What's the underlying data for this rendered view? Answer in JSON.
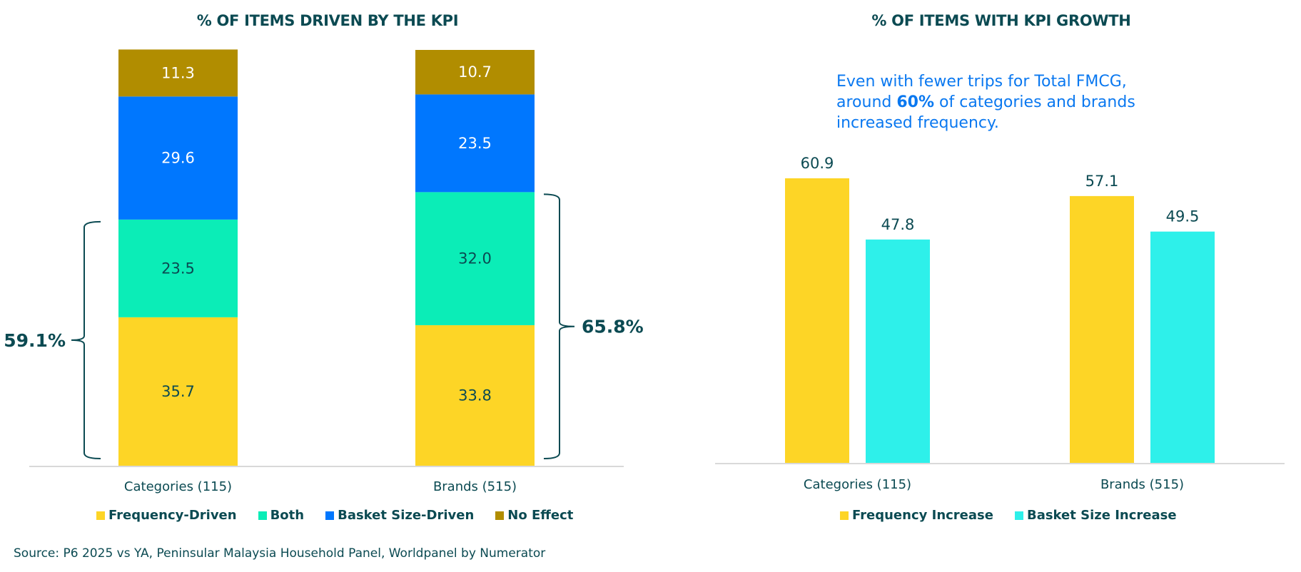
{
  "source": "Source: P6 2025 vs YA, Peninsular Malaysia Household Panel, Worldpanel by Numerator",
  "colors": {
    "frequency": "#fdd526",
    "both": "#0bedb7",
    "basket": "#0077fe",
    "no_effect": "#b18d00",
    "basket_increase": "#2ef0ea",
    "text_dark": "#0b4a52",
    "annotation_blue": "#0a78f0",
    "axis": "#d9d9d9"
  },
  "chart_data": [
    {
      "type": "bar",
      "stacked": true,
      "title": "% OF ITEMS DRIVEN BY THE KPI",
      "categories": [
        "Categories (115)",
        "Brands (515)"
      ],
      "series": [
        {
          "name": "Frequency-Driven",
          "values": [
            35.7,
            33.8
          ]
        },
        {
          "name": "Both",
          "values": [
            23.5,
            32.0
          ]
        },
        {
          "name": "Basket Size-Driven",
          "values": [
            29.6,
            23.5
          ]
        },
        {
          "name": "No Effect",
          "values": [
            11.3,
            10.7
          ]
        }
      ],
      "annotations": [
        {
          "category": "Categories (115)",
          "label": "59.1%",
          "spans": [
            "Frequency-Driven",
            "Both"
          ],
          "side": "left"
        },
        {
          "category": "Brands (515)",
          "label": "65.8%",
          "spans": [
            "Frequency-Driven",
            "Both"
          ],
          "side": "right"
        }
      ],
      "ylim": [
        0,
        100
      ],
      "xlabel": "",
      "ylabel": "",
      "grid": false,
      "legend": "bottom"
    },
    {
      "type": "bar",
      "stacked": false,
      "title": "% OF ITEMS WITH KPI GROWTH",
      "categories": [
        "Categories (115)",
        "Brands (515)"
      ],
      "series": [
        {
          "name": "Frequency Increase",
          "values": [
            60.9,
            57.1
          ]
        },
        {
          "name": "Basket Size Increase",
          "values": [
            47.8,
            49.5
          ]
        }
      ],
      "annotation_text": {
        "line1": "Even with fewer trips for Total FMCG,",
        "line2_pre": "around ",
        "line2_bold": "60%",
        "line2_post": " of categories and brands",
        "line3": "increased frequency."
      },
      "ylim": [
        0,
        70
      ],
      "xlabel": "",
      "ylabel": "",
      "grid": false,
      "legend": "bottom"
    }
  ]
}
